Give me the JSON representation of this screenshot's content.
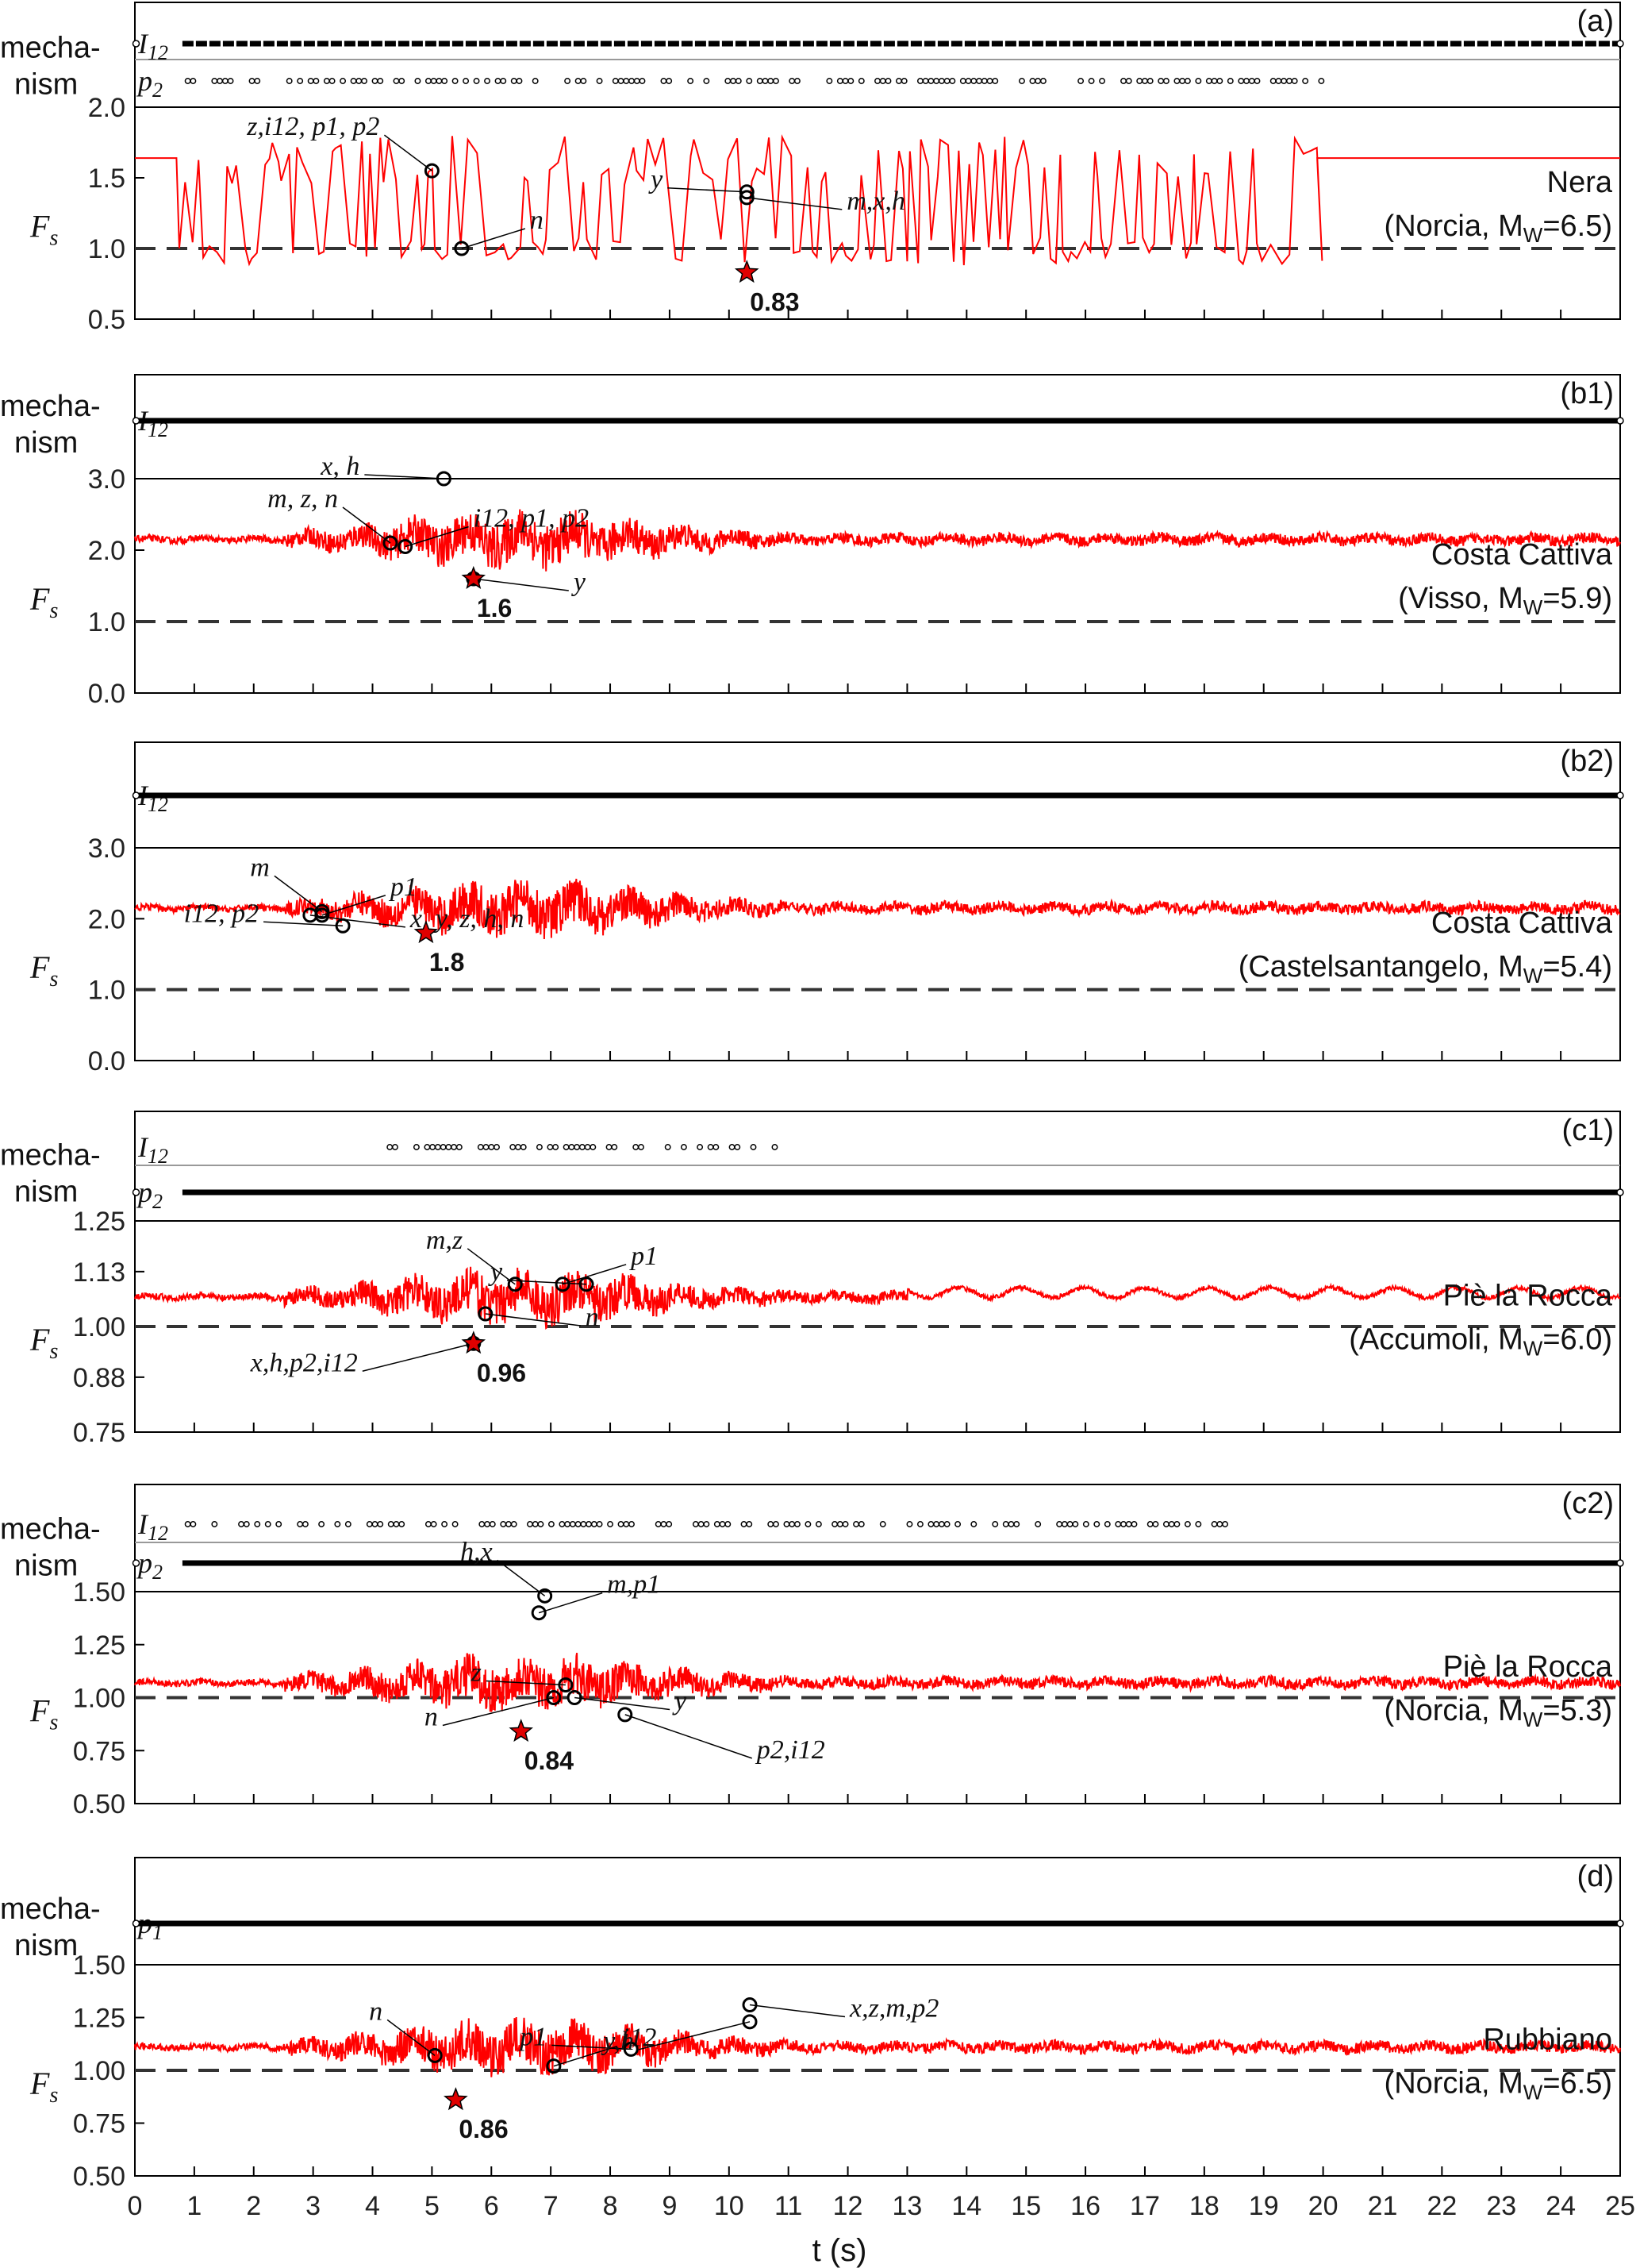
{
  "figure": {
    "xlabel": "t (s)",
    "xlim": [
      0,
      25
    ],
    "xticks": [
      0,
      1,
      2,
      3,
      4,
      5,
      6,
      7,
      8,
      9,
      10,
      11,
      12,
      13,
      14,
      15,
      16,
      17,
      18,
      19,
      20,
      21,
      22,
      23,
      24,
      25
    ],
    "ylabel": "Fs",
    "mechanism_label_line1": "mecha-",
    "mechanism_label_line2": "nism"
  },
  "chart_data": [
    {
      "type": "line",
      "panel": "(a)",
      "site": "Nera",
      "event": "(Norcia, MW=6.5)",
      "ylim": [
        0.5,
        2.0
      ],
      "yticks": [
        "0.5",
        "1.0",
        "1.5",
        "2.0"
      ],
      "threshold": 1.0,
      "lanes": [
        "I12",
        "p2"
      ],
      "min_marker": {
        "t": 10.3,
        "fs": 0.83,
        "label": "0.83"
      },
      "annotations": [
        {
          "text": "z,i12, p1, p2",
          "t": 5.0,
          "fs": 1.55
        },
        {
          "text": "n",
          "t": 5.5,
          "fs": 1.0
        },
        {
          "text": "y",
          "t": 10.3,
          "fs": 1.4
        },
        {
          "text": "m,x,h",
          "t": 10.3,
          "fs": 1.36
        }
      ],
      "series": [
        {
          "values_note": "",
          "baseline": 1.64,
          "mode": "square-switching",
          "t_active": [
            0.7,
            19.9
          ]
        }
      ]
    },
    {
      "type": "line",
      "panel": "(b1)",
      "site": "Costa Cattiva",
      "event": "(Visso, MW=5.9)",
      "ylim": [
        0.0,
        3.0
      ],
      "yticks": [
        "0.0",
        "1.0",
        "2.0",
        "3.0"
      ],
      "threshold": 1.0,
      "lanes": [
        "I12"
      ],
      "min_marker": {
        "t": 5.7,
        "fs": 1.6,
        "label": "1.6"
      },
      "annotations": [
        {
          "text": "m, z, n",
          "t": 4.3,
          "fs": 2.1
        },
        {
          "text": "i12, p1, p2",
          "t": 4.55,
          "fs": 2.05
        },
        {
          "text": "x, h",
          "t": 5.2,
          "fs": 3.0
        },
        {
          "text": "y",
          "t": 5.7,
          "fs": 1.6
        }
      ],
      "series": [
        {
          "baseline": 2.15,
          "mode": "noise"
        }
      ]
    },
    {
      "type": "line",
      "panel": "(b2)",
      "site": "Costa Cattiva",
      "event": "(Castelsantangelo, MW=5.4)",
      "ylim": [
        0.0,
        3.0
      ],
      "yticks": [
        "0.0",
        "1.0",
        "2.0",
        "3.0"
      ],
      "threshold": 1.0,
      "lanes": [
        "I12"
      ],
      "min_marker": {
        "t": 4.9,
        "fs": 1.8,
        "label": "1.8"
      },
      "annotations": [
        {
          "text": "m",
          "t": 3.15,
          "fs": 2.1
        },
        {
          "text": "p1",
          "t": 3.15,
          "fs": 2.05
        },
        {
          "text": "i12, p2",
          "t": 3.5,
          "fs": 1.9
        },
        {
          "text": "x, y, z, h, n",
          "t": 2.95,
          "fs": 2.05
        }
      ],
      "series": [
        {
          "baseline": 2.15,
          "mode": "noise"
        }
      ]
    },
    {
      "type": "line",
      "panel": "(c1)",
      "site": "Piè la Rocca",
      "event": "(Accumoli, MW=6.0)",
      "ylim": [
        0.75,
        1.25
      ],
      "yticks": [
        "0.75",
        "0.88",
        "1.00",
        "1.13",
        "1.25"
      ],
      "threshold": 1.0,
      "lanes": [
        "I12",
        "p2"
      ],
      "min_marker": {
        "t": 5.7,
        "fs": 0.96,
        "label": "0.96"
      },
      "annotations": [
        {
          "text": "m,z",
          "t": 6.4,
          "fs": 1.1
        },
        {
          "text": "p1",
          "t": 7.2,
          "fs": 1.1
        },
        {
          "text": "y",
          "t": 7.6,
          "fs": 1.1
        },
        {
          "text": "n",
          "t": 5.9,
          "fs": 1.03
        },
        {
          "text": "x,h,p2,i12",
          "t": 5.7,
          "fs": 0.96
        }
      ],
      "series": [
        {
          "baseline": 1.07,
          "mode": "noise"
        }
      ]
    },
    {
      "type": "line",
      "panel": "(c2)",
      "site": "Piè la Rocca",
      "event": "(Norcia, MW=5.3)",
      "ylim": [
        0.5,
        1.5
      ],
      "yticks": [
        "0.50",
        "0.75",
        "1.00",
        "1.25",
        "1.50"
      ],
      "threshold": 1.0,
      "lanes": [
        "I12",
        "p2"
      ],
      "min_marker": {
        "t": 6.5,
        "fs": 0.84,
        "label": "0.84"
      },
      "annotations": [
        {
          "text": "h,x",
          "t": 6.9,
          "fs": 1.48
        },
        {
          "text": "m,p1",
          "t": 6.8,
          "fs": 1.4
        },
        {
          "text": "z",
          "t": 7.25,
          "fs": 1.06
        },
        {
          "text": "y",
          "t": 7.4,
          "fs": 1.0
        },
        {
          "text": "n",
          "t": 7.05,
          "fs": 1.0
        },
        {
          "text": "p2,i12",
          "t": 8.25,
          "fs": 0.92
        }
      ],
      "series": [
        {
          "baseline": 1.07,
          "mode": "noise"
        }
      ]
    },
    {
      "type": "line",
      "panel": "(d)",
      "site": "Rubbiano",
      "event": "(Norcia, MW=6.5)",
      "ylim": [
        0.5,
        1.5
      ],
      "yticks": [
        "0.50",
        "0.75",
        "1.00",
        "1.25",
        "1.50"
      ],
      "threshold": 1.0,
      "lanes": [
        "p1"
      ],
      "min_marker": {
        "t": 5.4,
        "fs": 0.86,
        "label": "0.86"
      },
      "annotations": [
        {
          "text": "n",
          "t": 5.05,
          "fs": 1.07
        },
        {
          "text": "i12",
          "t": 7.05,
          "fs": 1.02
        },
        {
          "text": "p1",
          "t": 8.35,
          "fs": 1.1
        },
        {
          "text": "x,z,m,p2",
          "t": 10.35,
          "fs": 1.31
        },
        {
          "text": "y,h",
          "t": 10.35,
          "fs": 1.23
        }
      ],
      "series": [
        {
          "baseline": 1.11,
          "mode": "noise"
        }
      ]
    }
  ]
}
